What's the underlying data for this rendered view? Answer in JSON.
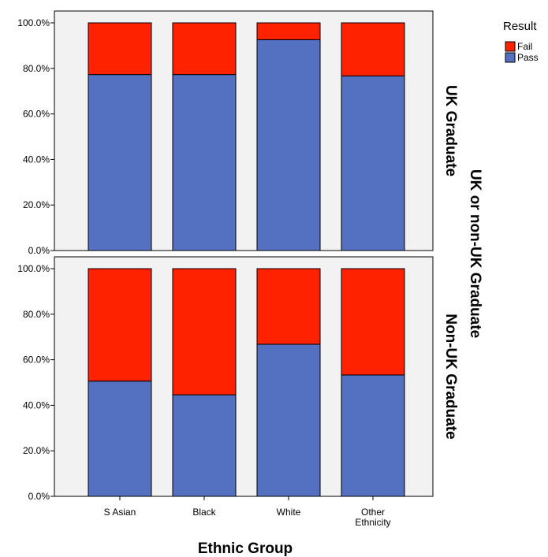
{
  "chart_data": {
    "type": "bar",
    "stacked": true,
    "xlabel": "Ethnic Group",
    "facet_label": "UK or non-UK Graduate",
    "categories": [
      "S Asian",
      "Black",
      "White",
      "Other Ethnicity"
    ],
    "y_ticks": [
      "0.0%",
      "20.0%",
      "40.0%",
      "60.0%",
      "80.0%",
      "100.0%"
    ],
    "ylim": [
      0,
      100
    ],
    "grid": false,
    "legend": {
      "title": "Result",
      "placement": "top-right",
      "items": [
        {
          "name": "Fail",
          "color": "#ff2200"
        },
        {
          "name": "Pass",
          "color": "#5470c0"
        }
      ]
    },
    "panels": [
      {
        "name": "UK Graduate",
        "series": [
          {
            "name": "Pass",
            "values": [
              77.3,
              77.3,
              92.6,
              76.7
            ]
          },
          {
            "name": "Fail",
            "values": [
              22.7,
              22.7,
              7.4,
              23.3
            ]
          }
        ]
      },
      {
        "name": "Non-UK Graduate",
        "series": [
          {
            "name": "Pass",
            "values": [
              50.6,
              44.6,
              66.8,
              53.3
            ]
          },
          {
            "name": "Fail",
            "values": [
              49.4,
              55.4,
              33.2,
              46.7
            ]
          }
        ]
      }
    ]
  }
}
